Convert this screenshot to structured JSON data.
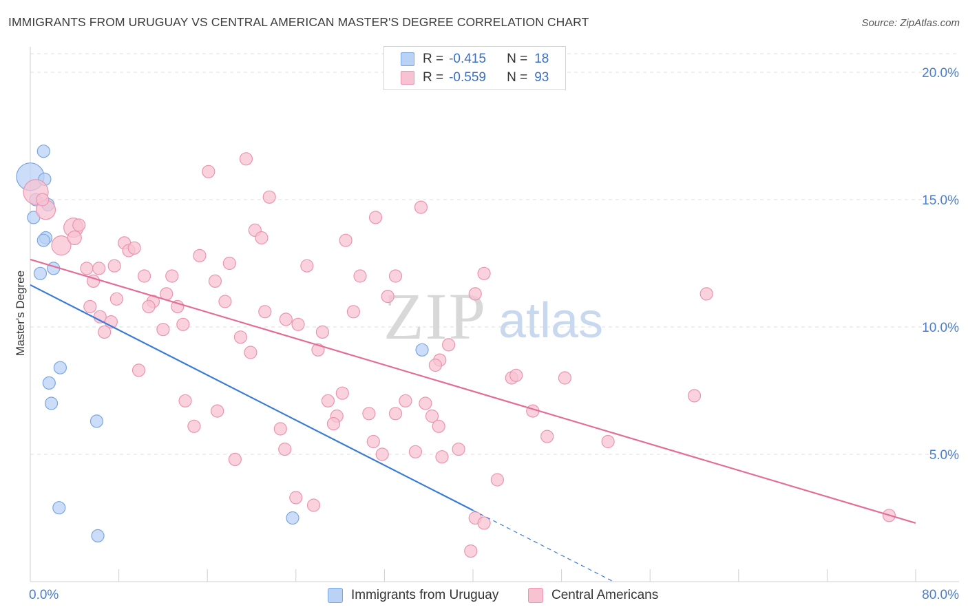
{
  "header": {
    "title": "IMMIGRANTS FROM URUGUAY VS CENTRAL AMERICAN MASTER'S DEGREE CORRELATION CHART",
    "source": "Source: ZipAtlas.com"
  },
  "watermark": {
    "zip": "ZIP",
    "atlas": "atlas"
  },
  "legend": {
    "r_label": "R =",
    "n_label": "N =",
    "series": [
      {
        "r": "-0.415",
        "n": "18"
      },
      {
        "r": "-0.559",
        "n": "93"
      }
    ]
  },
  "colors": {
    "blue_fill": "#b9d2f5",
    "blue_stroke": "#7aa6e0",
    "blue_line": "#3a7bd5",
    "pink_fill": "#f7c3d3",
    "pink_stroke": "#eb94b0",
    "pink_line": "#e26e98",
    "axis_text": "#4a7fcf",
    "grid": "#dedede"
  },
  "chart_data": {
    "type": "scatter",
    "title": "IMMIGRANTS FROM URUGUAY VS CENTRAL AMERICAN MASTER'S DEGREE CORRELATION CHART",
    "ylabel": "Master's Degree",
    "xlabel": "",
    "xlim": [
      0,
      80
    ],
    "ylim": [
      0,
      21
    ],
    "x_tick_labels": [
      "0.0%",
      "80.0%"
    ],
    "y_ticks": [
      5,
      10,
      15,
      20
    ],
    "y_tick_labels": [
      "5.0%",
      "10.0%",
      "15.0%",
      "20.0%"
    ],
    "grid": true,
    "legend_position": "bottom",
    "series": [
      {
        "name": "Immigrants from Uruguay",
        "color": "#b9d2f5",
        "points": [
          [
            0.0,
            15.9,
            20
          ],
          [
            1.2,
            16.9,
            9
          ],
          [
            1.3,
            15.8,
            9
          ],
          [
            0.5,
            15.0,
            9
          ],
          [
            1.6,
            14.8,
            9
          ],
          [
            0.3,
            14.3,
            9
          ],
          [
            1.4,
            13.5,
            9
          ],
          [
            1.2,
            13.4,
            9
          ],
          [
            2.1,
            12.3,
            9
          ],
          [
            0.9,
            12.1,
            9
          ],
          [
            2.7,
            8.4,
            9
          ],
          [
            1.7,
            7.8,
            9
          ],
          [
            1.9,
            7.0,
            9
          ],
          [
            6.0,
            6.3,
            9
          ],
          [
            2.6,
            2.9,
            9
          ],
          [
            6.1,
            1.8,
            9
          ],
          [
            23.7,
            2.5,
            9
          ],
          [
            35.4,
            9.1,
            9
          ]
        ],
        "trend": {
          "x": [
            0,
            40
          ],
          "y": [
            11.65,
            2.8
          ]
        },
        "trend_dashed": {
          "x": [
            40,
            52.7
          ],
          "y": [
            2.8,
            0.0
          ]
        }
      },
      {
        "name": "Central Americans",
        "color": "#f7c3d3",
        "points": [
          [
            0.5,
            15.3,
            18
          ],
          [
            1.4,
            14.6,
            14
          ],
          [
            3.9,
            13.9,
            14
          ],
          [
            2.8,
            13.2,
            14
          ],
          [
            4.0,
            13.5,
            10
          ],
          [
            1.1,
            15.0,
            9
          ],
          [
            4.4,
            14.0,
            9
          ],
          [
            16.1,
            16.1,
            9
          ],
          [
            19.5,
            16.6,
            9
          ],
          [
            21.6,
            15.1,
            9
          ],
          [
            5.1,
            12.3,
            9
          ],
          [
            6.2,
            12.3,
            9
          ],
          [
            5.7,
            11.8,
            9
          ],
          [
            8.5,
            13.3,
            9
          ],
          [
            8.9,
            13.0,
            9
          ],
          [
            9.4,
            13.1,
            9
          ],
          [
            10.3,
            12.0,
            9
          ],
          [
            12.8,
            12.0,
            9
          ],
          [
            11.1,
            11.0,
            9
          ],
          [
            12.3,
            11.3,
            9
          ],
          [
            10.7,
            10.8,
            9
          ],
          [
            13.3,
            10.8,
            9
          ],
          [
            7.8,
            11.1,
            9
          ],
          [
            7.6,
            12.4,
            9
          ],
          [
            5.4,
            10.8,
            9
          ],
          [
            6.3,
            10.4,
            9
          ],
          [
            7.3,
            10.2,
            9
          ],
          [
            6.7,
            9.8,
            9
          ],
          [
            12.0,
            9.9,
            9
          ],
          [
            13.8,
            10.1,
            9
          ],
          [
            15.3,
            12.8,
            9
          ],
          [
            16.7,
            11.8,
            9
          ],
          [
            17.6,
            11.0,
            9
          ],
          [
            18.0,
            12.5,
            9
          ],
          [
            20.3,
            13.8,
            9
          ],
          [
            20.9,
            13.5,
            9
          ],
          [
            19.0,
            9.6,
            9
          ],
          [
            19.9,
            9.0,
            9
          ],
          [
            21.2,
            10.6,
            9
          ],
          [
            23.1,
            10.3,
            9
          ],
          [
            24.2,
            10.1,
            9
          ],
          [
            25.0,
            12.4,
            9
          ],
          [
            26.0,
            9.1,
            9
          ],
          [
            26.4,
            9.8,
            9
          ],
          [
            28.5,
            13.4,
            9
          ],
          [
            29.2,
            10.6,
            9
          ],
          [
            29.8,
            12.0,
            9
          ],
          [
            31.2,
            14.3,
            9
          ],
          [
            33.0,
            12.0,
            9
          ],
          [
            32.3,
            11.2,
            9
          ],
          [
            35.3,
            14.7,
            9
          ],
          [
            37.0,
            8.7,
            9
          ],
          [
            37.8,
            9.3,
            9
          ],
          [
            36.6,
            8.5,
            9
          ],
          [
            40.2,
            11.3,
            9
          ],
          [
            41.0,
            12.1,
            9
          ],
          [
            43.5,
            8.0,
            9
          ],
          [
            43.9,
            8.1,
            9
          ],
          [
            48.3,
            8.0,
            9
          ],
          [
            60.0,
            7.3,
            9
          ],
          [
            61.1,
            11.3,
            9
          ],
          [
            9.8,
            8.3,
            9
          ],
          [
            14.0,
            7.1,
            9
          ],
          [
            14.8,
            6.1,
            9
          ],
          [
            16.9,
            6.7,
            9
          ],
          [
            18.5,
            4.8,
            9
          ],
          [
            22.6,
            6.0,
            9
          ],
          [
            23.0,
            5.2,
            9
          ],
          [
            26.9,
            7.1,
            9
          ],
          [
            27.7,
            6.5,
            9
          ],
          [
            28.2,
            7.4,
            9
          ],
          [
            27.4,
            6.2,
            9
          ],
          [
            30.6,
            6.6,
            9
          ],
          [
            31.0,
            5.5,
            9
          ],
          [
            31.8,
            5.0,
            9
          ],
          [
            33.0,
            6.6,
            9
          ],
          [
            33.9,
            7.1,
            9
          ],
          [
            34.8,
            5.1,
            9
          ],
          [
            35.7,
            7.0,
            9
          ],
          [
            36.3,
            6.5,
            9
          ],
          [
            36.9,
            6.1,
            9
          ],
          [
            37.2,
            4.9,
            9
          ],
          [
            38.7,
            5.2,
            9
          ],
          [
            42.2,
            4.0,
            9
          ],
          [
            45.4,
            6.7,
            9
          ],
          [
            46.7,
            5.7,
            9
          ],
          [
            52.2,
            5.5,
            9
          ],
          [
            24.0,
            3.3,
            9
          ],
          [
            25.6,
            3.0,
            9
          ],
          [
            40.2,
            2.5,
            9
          ],
          [
            41.0,
            2.3,
            9
          ],
          [
            39.8,
            1.2,
            9
          ],
          [
            77.6,
            2.6,
            9
          ]
        ],
        "trend": {
          "x": [
            0,
            80
          ],
          "y": [
            12.65,
            2.3
          ]
        }
      }
    ]
  }
}
